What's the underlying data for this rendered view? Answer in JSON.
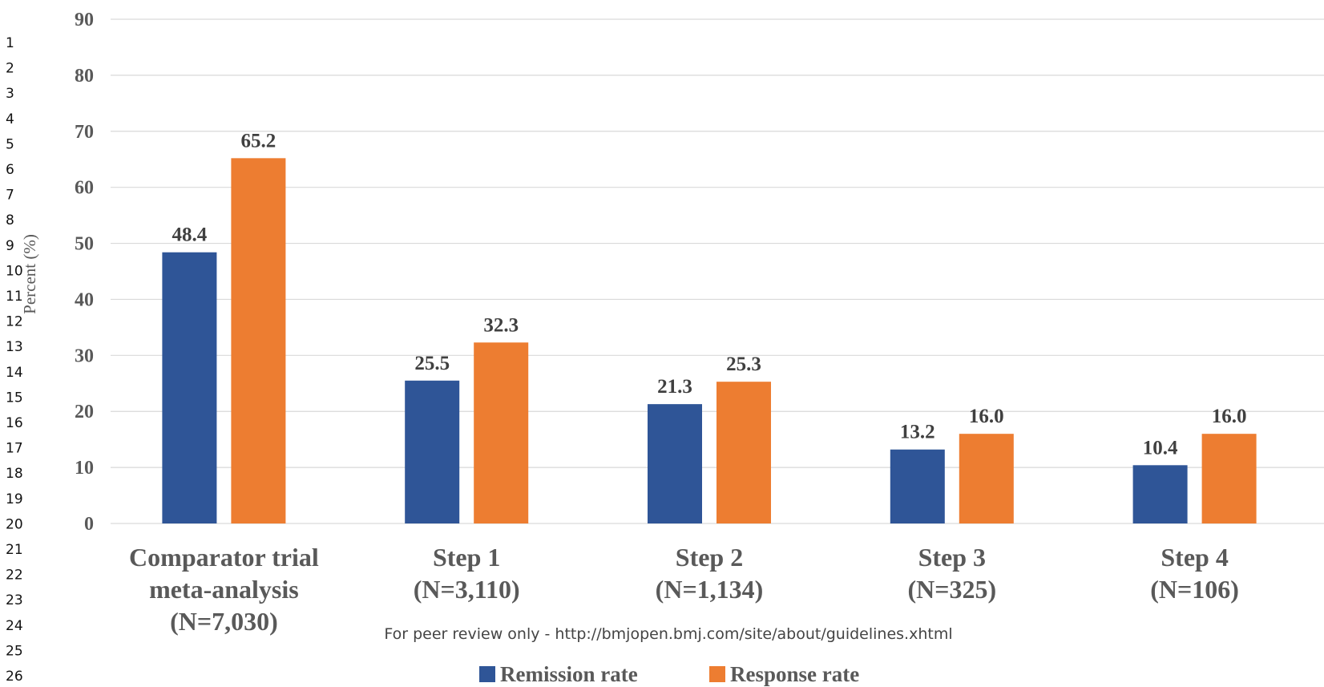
{
  "line_numbers": [
    "1",
    "2",
    "3",
    "4",
    "5",
    "6",
    "7",
    "8",
    "9",
    "10",
    "11",
    "12",
    "13",
    "14",
    "15",
    "16",
    "17",
    "18",
    "19",
    "20",
    "21",
    "22",
    "23",
    "24",
    "25",
    "26"
  ],
  "footer": "For peer review only - http://bmjopen.bmj.com/site/about/guidelines.xhtml",
  "chart_data": {
    "type": "bar",
    "ylabel": "Percent (%)",
    "ylim": [
      0,
      90
    ],
    "yticks": [
      0,
      10,
      20,
      30,
      40,
      50,
      60,
      70,
      80,
      90
    ],
    "grid": true,
    "legend_position": "bottom",
    "categories": [
      [
        "Comparator trial",
        "meta-analysis",
        "(N=7,030)"
      ],
      [
        "Step 1",
        "(N=3,110)"
      ],
      [
        "Step 2",
        "(N=1,134)"
      ],
      [
        "Step 3",
        "(N=325)"
      ],
      [
        "Step 4",
        "(N=106)"
      ]
    ],
    "series": [
      {
        "name": "Remission rate",
        "color": "#2f5597",
        "values": [
          48.4,
          25.5,
          21.3,
          13.2,
          10.4
        ],
        "labels": [
          "48.4",
          "25.5",
          "21.3",
          "13.2",
          "10.4"
        ]
      },
      {
        "name": "Response rate",
        "color": "#ed7d31",
        "values": [
          65.2,
          32.3,
          25.3,
          16.0,
          16.0
        ],
        "labels": [
          "65.2",
          "32.3",
          "25.3",
          "16.0",
          "16.0"
        ]
      }
    ]
  }
}
